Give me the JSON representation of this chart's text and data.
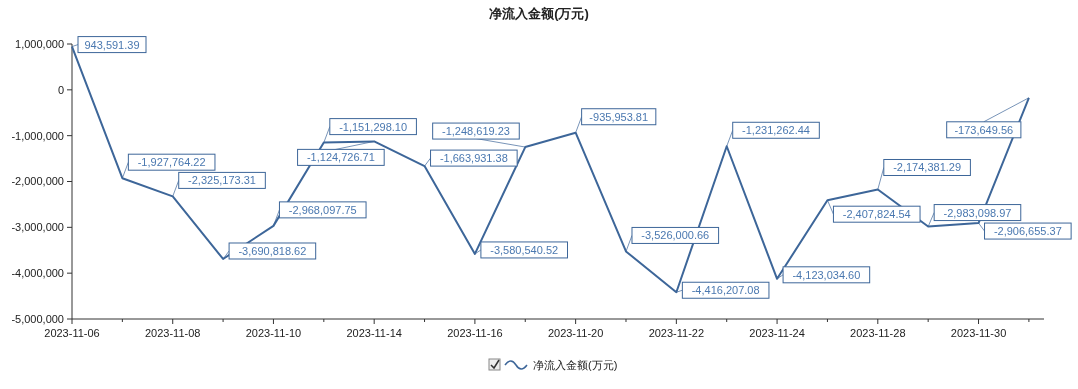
{
  "chart_data": {
    "type": "line",
    "title": "净流入金额(万元)",
    "categories": [
      "2023-11-06",
      null,
      "2023-11-08",
      null,
      "2023-11-10",
      null,
      "2023-11-14",
      null,
      "2023-11-16",
      null,
      "2023-11-20",
      null,
      "2023-11-22",
      null,
      "2023-11-24",
      null,
      "2023-11-28",
      null,
      "2023-11-30",
      null
    ],
    "series": [
      {
        "name": "净流入金额(万元)",
        "color": "#3d6699",
        "values": [
          943591.39,
          -1927764.22,
          -2325173.31,
          -3690818.62,
          -2968097.75,
          -1151298.1,
          -1124726.71,
          -1663931.38,
          -3580540.52,
          -1248619.23,
          -935953.81,
          -3526000.66,
          -4416207.08,
          -1231262.44,
          -4123034.6,
          -2407824.54,
          -2174381.29,
          -2983098.97,
          -2906655.37,
          -173649.56
        ],
        "value_labels": [
          "943,591.39",
          "-1,927,764.22",
          "-2,325,173.31",
          "-3,690,818.62",
          "-2,968,097.75",
          "-1,151,298.10",
          "-1,124,726.71",
          "-1,663,931.38",
          "-3,580,540.52",
          "-1,248,619.23",
          "-935,953.81",
          "-3,526,000.66",
          "-4,416,207.08",
          "-1,231,262.44",
          "-4,123,034.60",
          "-2,407,824.54",
          "-2,174,381.29",
          "-2,983,098.97",
          "-2,906,655.37",
          "-173,649.56"
        ]
      }
    ],
    "ylim": [
      -5000000,
      1000000
    ],
    "yticks": [
      {
        "value": 1000000,
        "label": "1,000,000"
      },
      0,
      {
        "value": -1000000,
        "label": "-1,000,000"
      },
      {
        "value": -2000000,
        "label": "-2,000,000"
      },
      {
        "value": -3000000,
        "label": "-3,000,000"
      },
      {
        "value": -4000000,
        "label": "-4,000,000"
      },
      {
        "value": -5000000,
        "label": "-5,000,000"
      }
    ],
    "legend": "bottom",
    "grid": false,
    "marker": "none",
    "line_style": "solid"
  }
}
